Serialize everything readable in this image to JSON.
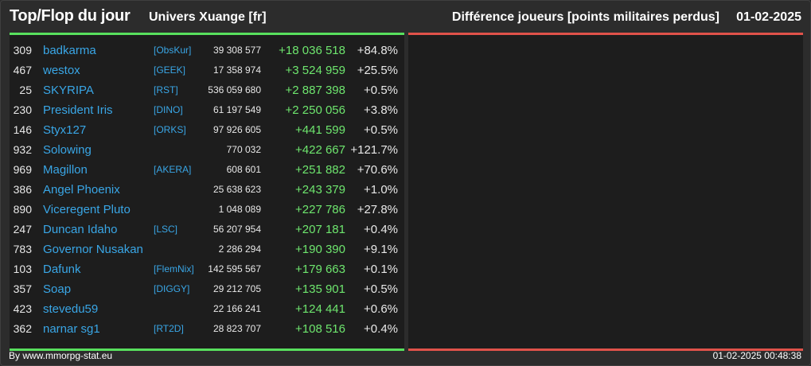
{
  "header": {
    "title": "Top/Flop du jour",
    "universe": "Univers Xuange [fr]",
    "metric": "Différence joueurs [points militaires perdus]",
    "date": "01-02-2025"
  },
  "top_rows": [
    {
      "rank": "309",
      "name": "badkarma",
      "alliance": "[ObsKur]",
      "points": "39 308 577",
      "diff": "+18 036 518",
      "pct": "+84.8%"
    },
    {
      "rank": "467",
      "name": "westox",
      "alliance": "[GEEK]",
      "points": "17 358 974",
      "diff": "+3 524 959",
      "pct": "+25.5%"
    },
    {
      "rank": "25",
      "name": "SKYRIPA",
      "alliance": "[RST]",
      "points": "536 059 680",
      "diff": "+2 887 398",
      "pct": "+0.5%"
    },
    {
      "rank": "230",
      "name": "President Iris",
      "alliance": "[DINO]",
      "points": "61 197 549",
      "diff": "+2 250 056",
      "pct": "+3.8%"
    },
    {
      "rank": "146",
      "name": "Styx127",
      "alliance": "[ORKS]",
      "points": "97 926 605",
      "diff": "+441 599",
      "pct": "+0.5%"
    },
    {
      "rank": "932",
      "name": "Solowing",
      "alliance": "",
      "points": "770 032",
      "diff": "+422 667",
      "pct": "+121.7%"
    },
    {
      "rank": "969",
      "name": "Magillon",
      "alliance": "[AKERA]",
      "points": "608 601",
      "diff": "+251 882",
      "pct": "+70.6%"
    },
    {
      "rank": "386",
      "name": "Angel Phoenix",
      "alliance": "",
      "points": "25 638 623",
      "diff": "+243 379",
      "pct": "+1.0%"
    },
    {
      "rank": "890",
      "name": "Viceregent Pluto",
      "alliance": "",
      "points": "1 048 089",
      "diff": "+227 786",
      "pct": "+27.8%"
    },
    {
      "rank": "247",
      "name": "Duncan Idaho",
      "alliance": "[LSC]",
      "points": "56 207 954",
      "diff": "+207 181",
      "pct": "+0.4%"
    },
    {
      "rank": "783",
      "name": "Governor Nusakan",
      "alliance": "",
      "points": "2 286 294",
      "diff": "+190 390",
      "pct": "+9.1%"
    },
    {
      "rank": "103",
      "name": "Dafunk",
      "alliance": "[FlemNix]",
      "points": "142 595 567",
      "diff": "+179 663",
      "pct": "+0.1%"
    },
    {
      "rank": "357",
      "name": "Soap",
      "alliance": "[DIGGY]",
      "points": "29 212 705",
      "diff": "+135 901",
      "pct": "+0.5%"
    },
    {
      "rank": "423",
      "name": "stevedu59",
      "alliance": "",
      "points": "22 166 241",
      "diff": "+124 441",
      "pct": "+0.6%"
    },
    {
      "rank": "362",
      "name": "narnar sg1",
      "alliance": "[RT2D]",
      "points": "28 823 707",
      "diff": "+108 516",
      "pct": "+0.4%"
    }
  ],
  "colors": {
    "top_accent": "#58e05e",
    "flop_accent": "#e0524a",
    "link": "#39a6e6",
    "positive": "#6ee66e"
  },
  "footer": {
    "credit": "By www.mmorpg-stat.eu",
    "timestamp": "01-02-2025 00:48:38"
  }
}
